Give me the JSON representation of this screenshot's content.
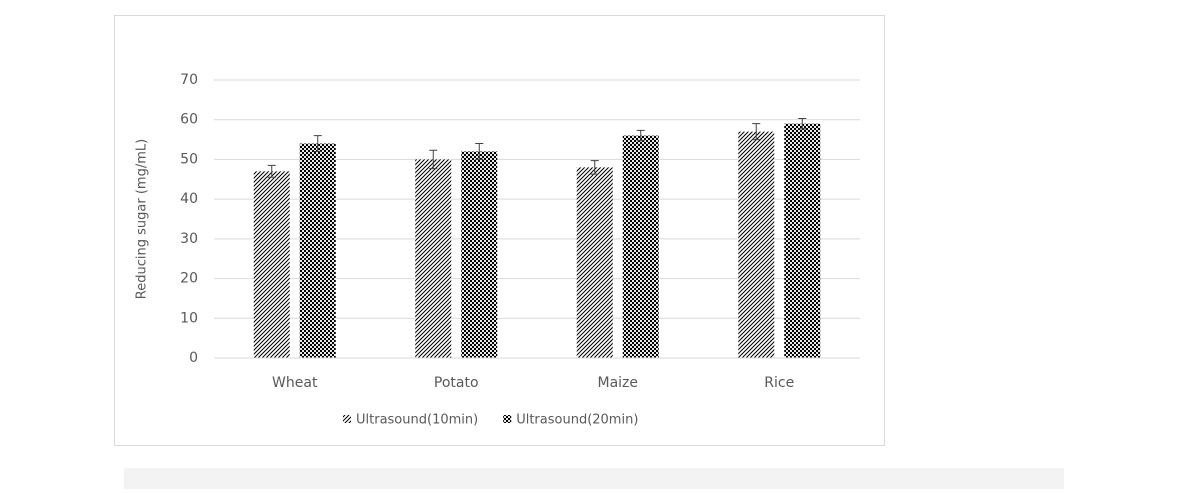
{
  "chart_data": {
    "type": "bar",
    "y_label": "Reducing sugar (mg/mL)",
    "categories": [
      "Wheat",
      "Potato",
      "Maize",
      "Rice"
    ],
    "series": [
      {
        "name": "Ultrasound(10min)",
        "color": "#000000",
        "pattern": "hatch",
        "values": [
          47,
          50,
          48,
          57
        ],
        "errors": [
          1.5,
          2.3,
          1.7,
          2
        ]
      },
      {
        "name": "Ultrasound(20min)",
        "color": "#000000",
        "pattern": "checker",
        "values": [
          54,
          52,
          56,
          59
        ],
        "errors": [
          2,
          2,
          1.3,
          1.3
        ]
      }
    ],
    "ylim": [
      0,
      70
    ],
    "yticks": [
      0,
      10,
      20,
      30,
      40,
      50,
      60,
      70
    ],
    "grid": true,
    "legend": "bottom"
  }
}
